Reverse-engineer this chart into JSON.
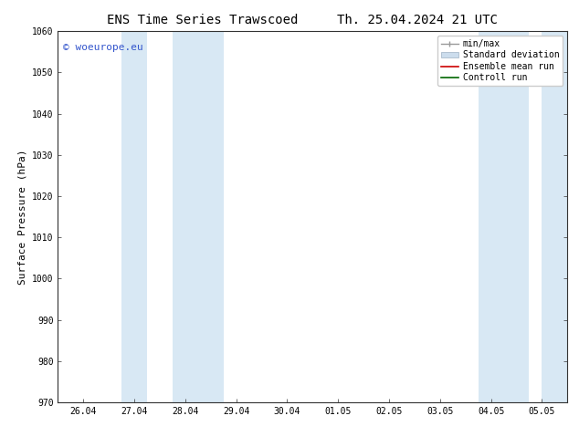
{
  "title_left": "ENS Time Series Trawscoed",
  "title_right": "Th. 25.04.2024 21 UTC",
  "ylabel": "Surface Pressure (hPa)",
  "ylim": [
    970,
    1060
  ],
  "yticks": [
    970,
    980,
    990,
    1000,
    1010,
    1020,
    1030,
    1040,
    1050,
    1060
  ],
  "xtick_labels": [
    "26.04",
    "27.04",
    "28.04",
    "29.04",
    "30.04",
    "01.05",
    "02.05",
    "03.05",
    "04.05",
    "05.05"
  ],
  "xtick_positions": [
    0,
    1,
    2,
    3,
    4,
    5,
    6,
    7,
    8,
    9
  ],
  "xlim": [
    -0.5,
    9.5
  ],
  "shaded_bands": [
    {
      "x_start": 0.5,
      "x_end": 1.0,
      "color": "#d8e8f4"
    },
    {
      "x_start": 1.5,
      "x_end": 2.5,
      "color": "#d8e8f4"
    },
    {
      "x_start": 7.5,
      "x_end": 8.5,
      "color": "#d8e8f4"
    },
    {
      "x_start": 9.0,
      "x_end": 9.5,
      "color": "#d8e8f4"
    }
  ],
  "watermark_text": "© woeurope.eu",
  "watermark_color": "#3355cc",
  "legend_labels": [
    "min/max",
    "Standard deviation",
    "Ensemble mean run",
    "Controll run"
  ],
  "legend_colors_line": [
    "#999999",
    "#aabbcc",
    "#cc0000",
    "#009900"
  ],
  "background_color": "#ffffff",
  "plot_bg_color": "#ffffff",
  "title_fontsize": 10,
  "tick_fontsize": 7,
  "ylabel_fontsize": 8,
  "watermark_fontsize": 8,
  "legend_fontsize": 7,
  "figsize": [
    6.34,
    4.9
  ],
  "dpi": 100
}
